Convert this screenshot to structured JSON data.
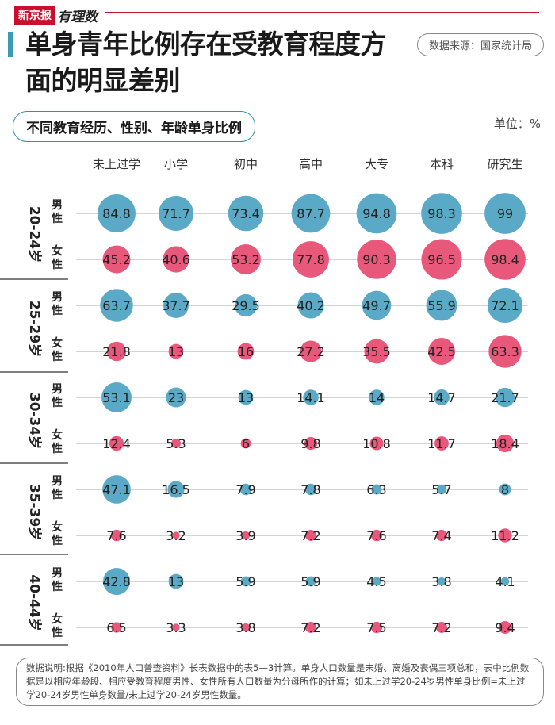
{
  "brand": {
    "name": "新京报",
    "column": "有理数"
  },
  "title": "单身青年比例存在受教育程度方面的明显差别",
  "source": "数据来源：国家统计局",
  "subtitle": "不同教育经历、性别、年龄单身比例",
  "unit": "单位：%",
  "note": "数据说明:根据《2010年人口普查资料》长表数据中的表5—3计算。单身人口数量是未婚、离婚及丧偶三项总和，表中比例数据是以相应年龄段、相应受教育程度男性、女性所有人口数量为分母所作的计算；如未上过学20-24岁男性单身比例=未上过学20-24岁男性单身数量/未上过学20-24岁男性数量。",
  "colors": {
    "male": "#5aa9c7",
    "female": "#e8587a",
    "accent": "#c8102e",
    "title_bar": "#3d9ab5"
  },
  "chart_data": {
    "type": "bubble",
    "categories": [
      "未上过学",
      "小学",
      "初中",
      "高中",
      "大专",
      "本科",
      "研究生"
    ],
    "age_groups": [
      "20-24岁",
      "25-29岁",
      "30-34岁",
      "35-39岁",
      "40-44岁"
    ],
    "genders": [
      "男性",
      "女性"
    ],
    "series": [
      {
        "name": "男性",
        "age": "20-24岁",
        "values": [
          84.8,
          71.7,
          73.4,
          87.7,
          94.8,
          98.3,
          99
        ]
      },
      {
        "name": "女性",
        "age": "20-24岁",
        "values": [
          45.2,
          40.6,
          53.2,
          77.8,
          90.3,
          96.5,
          98.4
        ]
      },
      {
        "name": "男性",
        "age": "25-29岁",
        "values": [
          63.7,
          37.7,
          29.5,
          40.2,
          49.7,
          55.9,
          72.1
        ]
      },
      {
        "name": "女性",
        "age": "25-29岁",
        "values": [
          21.8,
          13,
          16,
          27.2,
          35.5,
          42.5,
          63.3
        ]
      },
      {
        "name": "男性",
        "age": "30-34岁",
        "values": [
          53.1,
          23,
          13,
          14.1,
          14,
          14.7,
          21.7
        ]
      },
      {
        "name": "女性",
        "age": "30-34岁",
        "values": [
          12.4,
          5.3,
          6,
          9.8,
          10.8,
          11.7,
          18.4
        ]
      },
      {
        "name": "男性",
        "age": "35-39岁",
        "values": [
          47.1,
          16.5,
          7.9,
          7.8,
          6.3,
          5.7,
          8
        ]
      },
      {
        "name": "女性",
        "age": "35-39岁",
        "values": [
          7.6,
          3.2,
          3.9,
          7.2,
          7.6,
          7.4,
          11.2
        ]
      },
      {
        "name": "男性",
        "age": "40-44岁",
        "values": [
          42.8,
          13,
          5.9,
          5.9,
          4.5,
          3.8,
          4.1
        ]
      },
      {
        "name": "女性",
        "age": "40-44岁",
        "values": [
          6.5,
          3.3,
          3.8,
          7.2,
          7.5,
          7.2,
          9.4
        ]
      }
    ],
    "unit": "%"
  }
}
